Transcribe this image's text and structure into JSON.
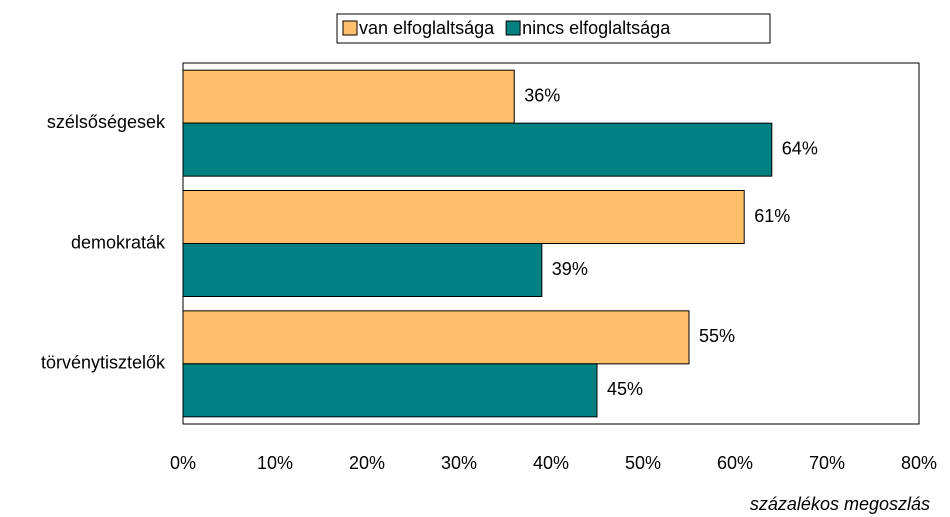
{
  "chart_data": {
    "type": "hbar",
    "categories": [
      "szélsőségesek",
      "demokraták",
      "törvénytisztelők"
    ],
    "series": [
      {
        "name": "van elfoglaltsága",
        "color": "#FFBF6B",
        "values": [
          36,
          61,
          55
        ],
        "value_labels": [
          "36%",
          "61%",
          "55%"
        ]
      },
      {
        "name": "nincs elfoglaltsága",
        "color": "#008080",
        "values": [
          64,
          39,
          45
        ],
        "value_labels": [
          "64%",
          "39%",
          "45%"
        ]
      }
    ],
    "xlim": [
      0,
      80
    ],
    "xticks": [
      {
        "value": 0,
        "label": "0%"
      },
      {
        "value": 10,
        "label": "10%"
      },
      {
        "value": 20,
        "label": "20%"
      },
      {
        "value": 30,
        "label": "30%"
      },
      {
        "value": 40,
        "label": "40%"
      },
      {
        "value": 50,
        "label": "50%"
      },
      {
        "value": 60,
        "label": "60%"
      },
      {
        "value": 70,
        "label": "70%"
      },
      {
        "value": 80,
        "label": "80%"
      }
    ],
    "xlabel": "százalékos megoszlás",
    "legend": "top"
  }
}
